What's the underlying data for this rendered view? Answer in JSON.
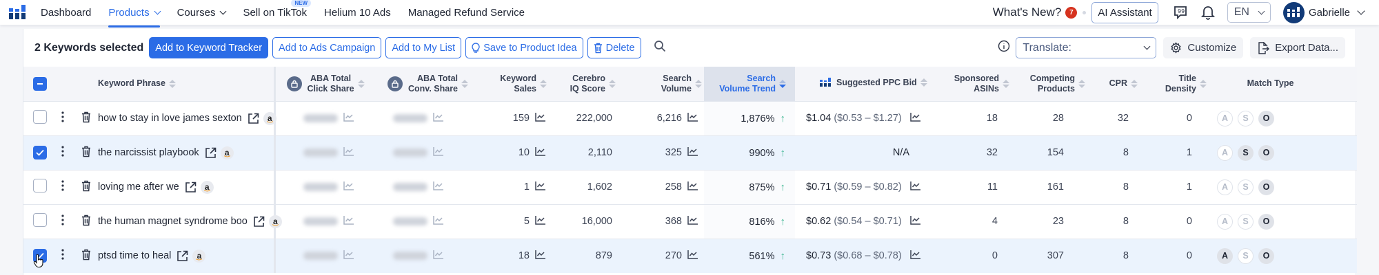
{
  "nav": {
    "items": [
      {
        "label": "Dashboard",
        "active": false,
        "dropdown": false
      },
      {
        "label": "Products",
        "active": true,
        "dropdown": true
      },
      {
        "label": "Courses",
        "active": false,
        "dropdown": true
      },
      {
        "label": "Sell on TikTok",
        "active": false,
        "dropdown": false,
        "badge": "NEW"
      },
      {
        "label": "Helium 10 Ads",
        "active": false,
        "dropdown": false
      },
      {
        "label": "Managed Refund Service",
        "active": false,
        "dropdown": false
      }
    ],
    "whats_new": "What's New?",
    "whats_new_count": "7",
    "ai_assistant": "AI Assistant",
    "language": "EN",
    "user_name": "Gabrielle"
  },
  "actionbar": {
    "selected_text": "2 Keywords selected",
    "add_tracker": "Add to Keyword Tracker",
    "add_ads": "Add to Ads Campaign",
    "add_list": "Add to My List",
    "save_idea": "Save to Product Idea",
    "delete": "Delete",
    "translate_placeholder": "Translate:",
    "customize": "Customize",
    "export": "Export Data..."
  },
  "table": {
    "columns": {
      "keyword": "Keyword Phrase",
      "aba_click_1": "ABA Total",
      "aba_click_2": "Click Share",
      "aba_conv_1": "ABA Total",
      "aba_conv_2": "Conv. Share",
      "kw_sales_1": "Keyword",
      "kw_sales_2": "Sales",
      "iq_1": "Cerebro",
      "iq_2": "IQ Score",
      "sv_1": "Search",
      "sv_2": "Volume",
      "svt_1": "Search",
      "svt_2": "Volume Trend",
      "ppc": "Suggested PPC Bid",
      "spons_1": "Sponsored",
      "spons_2": "ASINs",
      "comp_1": "Competing",
      "comp_2": "Products",
      "cpr": "CPR",
      "td_1": "Title",
      "td_2": "Density",
      "match": "Match Type"
    },
    "rows": [
      {
        "selected": false,
        "keyword": "how to stay in love james sexton",
        "kw_sales": "159",
        "iq": "222,000",
        "sv": "6,216",
        "svt": "1,876%",
        "ppc_main": "$1.04",
        "ppc_range": "($0.53 – $1.27)",
        "sponsored": "18",
        "competing": "28",
        "cpr": "32",
        "title_density": "0",
        "match": {
          "a": false,
          "s": false,
          "o": true
        }
      },
      {
        "selected": true,
        "keyword": "the narcissist playbook",
        "kw_sales": "10",
        "iq": "2,110",
        "sv": "325",
        "svt": "990%",
        "ppc_main": "N/A",
        "ppc_range": "",
        "sponsored": "32",
        "competing": "154",
        "cpr": "8",
        "title_density": "1",
        "match": {
          "a": false,
          "s": true,
          "o": true
        }
      },
      {
        "selected": false,
        "keyword": "loving me after we",
        "kw_sales": "1",
        "iq": "1,602",
        "sv": "258",
        "svt": "875%",
        "ppc_main": "$0.71",
        "ppc_range": "($0.59 – $0.82)",
        "sponsored": "11",
        "competing": "161",
        "cpr": "8",
        "title_density": "1",
        "match": {
          "a": false,
          "s": false,
          "o": true
        }
      },
      {
        "selected": false,
        "keyword": "the human magnet syndrome boo",
        "kw_sales": "5",
        "iq": "16,000",
        "sv": "368",
        "svt": "816%",
        "ppc_main": "$0.62",
        "ppc_range": "($0.54 – $0.71)",
        "sponsored": "4",
        "competing": "23",
        "cpr": "8",
        "title_density": "0",
        "match": {
          "a": false,
          "s": false,
          "o": true
        }
      },
      {
        "selected": true,
        "keyword": "ptsd time to heal",
        "kw_sales": "18",
        "iq": "879",
        "sv": "270",
        "svt": "561%",
        "ppc_main": "$0.73",
        "ppc_range": "($0.68 – $0.78)",
        "sponsored": "0",
        "competing": "307",
        "cpr": "8",
        "title_density": "0",
        "match": {
          "a": true,
          "s": false,
          "o": true
        }
      }
    ],
    "match_labels": {
      "a": "A",
      "s": "S",
      "o": "O"
    }
  },
  "colors": {
    "accent": "#2b6ce6",
    "trend_up": "#38b48e",
    "selected_row": "#ebf3fd",
    "badge_red": "#d6331f"
  }
}
